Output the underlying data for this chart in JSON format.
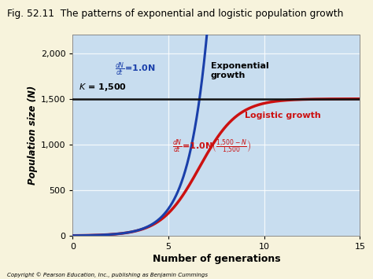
{
  "title": "Fig. 52.11  The patterns of exponential and logistic population growth",
  "xlabel": "Number of generations",
  "ylabel": "Population size (N)",
  "K": 1500,
  "r": 1.0,
  "N0": 2,
  "t_max": 15,
  "xlim": [
    0,
    15
  ],
  "ylim": [
    0,
    2200
  ],
  "yticks": [
    0,
    500,
    1000,
    1500,
    2000
  ],
  "xticks": [
    0,
    5,
    10,
    15
  ],
  "plot_bg_color": "#c8ddef",
  "outer_bg_color": "#f7f3dc",
  "exp_color": "#1a3faa",
  "log_color": "#cc1111",
  "k_line_color": "#111111",
  "copyright": "Copyright © Pearson Education, Inc., publishing as Benjamin Cummings"
}
